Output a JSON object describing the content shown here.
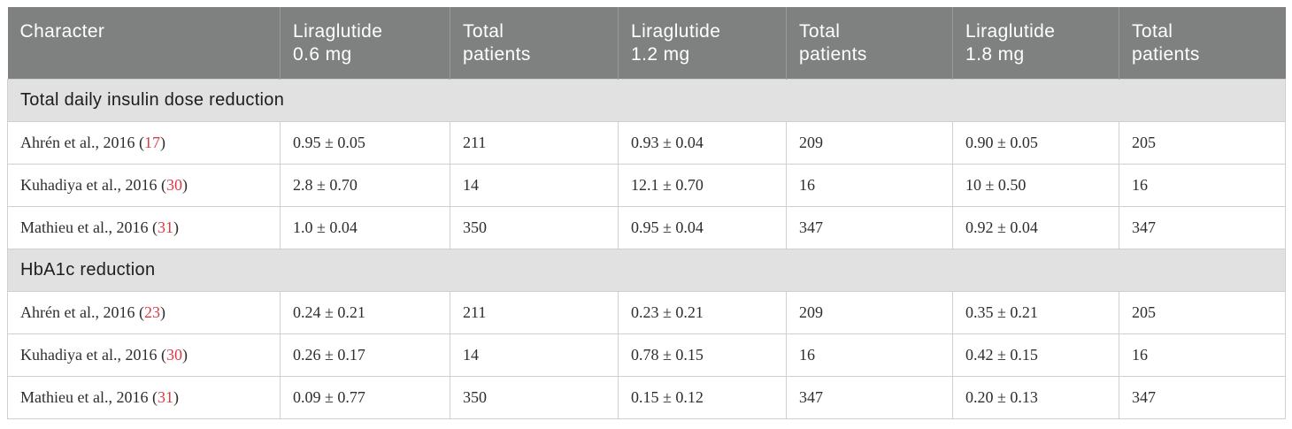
{
  "colors": {
    "header_bg": "#7f8181",
    "header_text": "#ffffff",
    "section_bg": "#e1e1e1",
    "row_bg": "#ffffff",
    "border": "#d0d0d0",
    "citation_red": "#dc3a41",
    "body_text": "#2e2e2e"
  },
  "table": {
    "columns": [
      {
        "label": "Character"
      },
      {
        "label": "Liraglutide\n0.6 mg"
      },
      {
        "label": "Total\npatients"
      },
      {
        "label": "Liraglutide\n1.2 mg"
      },
      {
        "label": "Total\npatients"
      },
      {
        "label": "Liraglutide\n1.8 mg"
      },
      {
        "label": "Total\npatients"
      }
    ],
    "sections": [
      {
        "title": "Total daily insulin dose reduction",
        "rows": [
          {
            "study": "Ahrén et al., 2016",
            "ref": "17",
            "values": [
              "0.95 ± 0.05",
              "211",
              "0.93 ± 0.04",
              "209",
              "0.90 ± 0.05",
              "205"
            ]
          },
          {
            "study": "Kuhadiya et al., 2016",
            "ref": "30",
            "values": [
              "2.8 ± 0.70",
              "14",
              "12.1 ± 0.70",
              "16",
              "10 ± 0.50",
              "16"
            ]
          },
          {
            "study": "Mathieu et al., 2016",
            "ref": "31",
            "values": [
              "1.0 ± 0.04",
              "350",
              "0.95 ± 0.04",
              "347",
              "0.92 ± 0.04",
              "347"
            ]
          }
        ]
      },
      {
        "title": "HbA1c reduction",
        "rows": [
          {
            "study": "Ahrén et al., 2016",
            "ref": "23",
            "values": [
              "0.24 ± 0.21",
              "211",
              "0.23 ± 0.21",
              "209",
              "0.35 ± 0.21",
              "205"
            ]
          },
          {
            "study": "Kuhadiya et al., 2016",
            "ref": "30",
            "values": [
              "0.26 ± 0.17",
              "14",
              "0.78 ± 0.15",
              "16",
              "0.42 ± 0.15",
              "16"
            ]
          },
          {
            "study": "Mathieu et al., 2016",
            "ref": "31",
            "values": [
              "0.09 ± 0.77",
              "350",
              "0.15 ± 0.12",
              "347",
              "0.20 ± 0.13",
              "347"
            ]
          }
        ]
      }
    ]
  }
}
